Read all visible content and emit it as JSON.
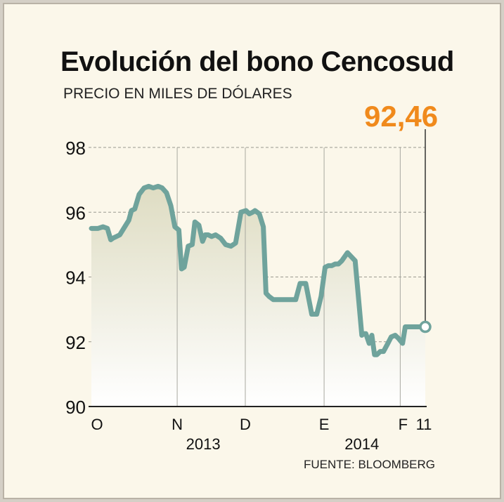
{
  "chart_data": {
    "type": "area",
    "title": "Evolución del bono Cencosud",
    "subtitle": "PRECIO EN MILES DE DÓLARES",
    "source": "FUENTE: BLOOMBERG",
    "last_value_label": "92,46",
    "last_value": 92.46,
    "ylim": [
      90,
      98
    ],
    "yticks": [
      90,
      92,
      94,
      96,
      98
    ],
    "ytick_labels": [
      "90",
      "92",
      "94",
      "96",
      "98"
    ],
    "xlim": [
      0,
      1
    ],
    "month_ticks": [
      {
        "label": "O",
        "x": 0.0
      },
      {
        "label": "N",
        "x": 0.257
      },
      {
        "label": "D",
        "x": 0.461
      },
      {
        "label": "E",
        "x": 0.697
      },
      {
        "label": "F",
        "x": 0.925
      },
      {
        "label": "11",
        "x": 1.0
      }
    ],
    "year_labels": [
      {
        "label": "2013",
        "x": 0.335
      },
      {
        "label": "2014",
        "x": 0.81
      }
    ],
    "grid": "horizontal dashed, vertical solid at month boundaries",
    "colors": {
      "line": "#6fa39c",
      "fill_top": "#dedcc2",
      "fill_bottom": "#ffffff",
      "highlight": "#f08a1c",
      "grid": "#9a9a90"
    },
    "series": [
      {
        "x": [
          0,
          0.02,
          0.035,
          0.048,
          0.058,
          0.065,
          0.075,
          0.085,
          0.1,
          0.112,
          0.12,
          0.13,
          0.143,
          0.158,
          0.172,
          0.185,
          0.2,
          0.212,
          0.225,
          0.238,
          0.25,
          0.262,
          0.27,
          0.278,
          0.29,
          0.302,
          0.31,
          0.322,
          0.333,
          0.341,
          0.35,
          0.36,
          0.372,
          0.387,
          0.402,
          0.418,
          0.432,
          0.448,
          0.463,
          0.473,
          0.483,
          0.49,
          0.503,
          0.515,
          0.523,
          0.532,
          0.545,
          0.557,
          0.565,
          0.575,
          0.587,
          0.6,
          0.612,
          0.625,
          0.642,
          0.66,
          0.675,
          0.688,
          0.7,
          0.71,
          0.72,
          0.73,
          0.74,
          0.75,
          0.767,
          0.79,
          0.81,
          0.815,
          0.822,
          0.832,
          0.84,
          0.848,
          0.855,
          0.865,
          0.875,
          0.888,
          0.898,
          0.91,
          0.92,
          0.932,
          0.94,
          0.95,
          0.962,
          0.975,
          0.985,
          1.0
        ],
        "values": [
          95.5,
          95.5,
          95.55,
          95.5,
          95.15,
          95.2,
          95.25,
          95.3,
          95.55,
          95.75,
          96.05,
          96.1,
          96.55,
          96.75,
          96.8,
          96.75,
          96.8,
          96.75,
          96.6,
          96.2,
          95.55,
          95.45,
          94.25,
          94.3,
          94.95,
          95.0,
          95.7,
          95.6,
          95.1,
          95.3,
          95.3,
          95.25,
          95.3,
          95.2,
          95.0,
          94.95,
          95.05,
          96.0,
          96.05,
          95.95,
          96.0,
          96.05,
          95.95,
          95.55,
          93.5,
          93.4,
          93.3,
          93.3,
          93.3,
          93.3,
          93.3,
          93.3,
          93.3,
          93.8,
          93.8,
          92.85,
          92.85,
          93.4,
          94.3,
          94.35,
          94.35,
          94.4,
          94.4,
          94.5,
          94.75,
          94.5,
          92.2,
          92.25,
          92.25,
          91.95,
          92.2,
          91.6,
          91.6,
          91.7,
          91.7,
          91.95,
          92.15,
          92.2,
          92.1,
          91.95,
          92.46,
          92.46,
          92.46,
          92.46,
          92.46,
          92.46
        ]
      }
    ]
  }
}
